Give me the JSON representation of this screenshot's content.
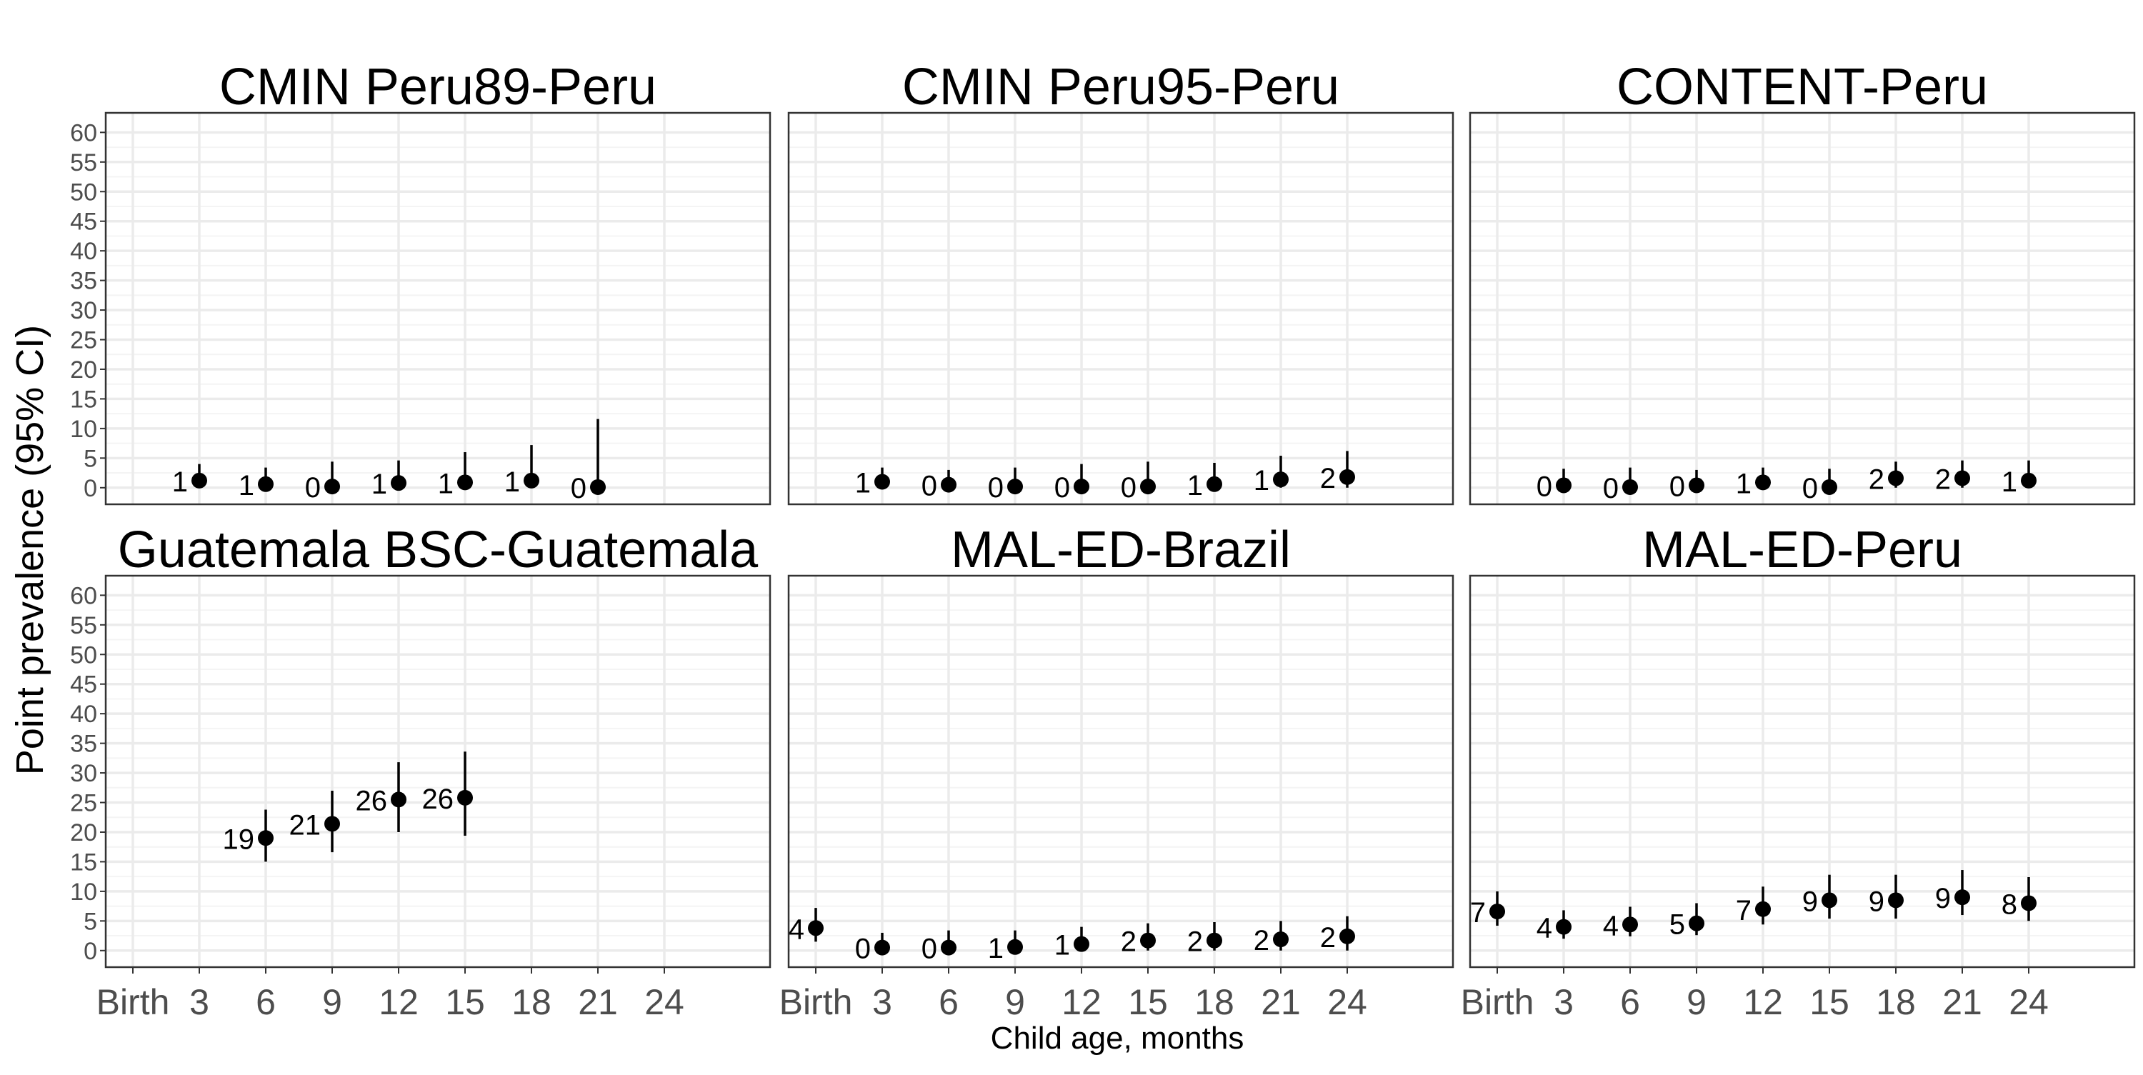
{
  "chart_data": {
    "type": "scatter",
    "xlabel": "Child age, months",
    "ylabel": "Point prevalence (95% CI)",
    "x_categories": [
      "Birth",
      "3",
      "6",
      "9",
      "12",
      "15",
      "18",
      "21",
      "24"
    ],
    "y_ticks": [
      0,
      5,
      10,
      15,
      20,
      25,
      30,
      35,
      40,
      45,
      50,
      55,
      60
    ],
    "ylim": [
      -2.8,
      63.3
    ],
    "grid": true,
    "panels": [
      {
        "title": "CMIN Peru89-Peru",
        "points": [
          {
            "x": "3",
            "y": 1.2,
            "lower": 0,
            "upper": 4.0,
            "label": "1"
          },
          {
            "x": "6",
            "y": 0.6,
            "lower": 0,
            "upper": 3.4,
            "label": "1"
          },
          {
            "x": "9",
            "y": 0.2,
            "lower": 0,
            "upper": 4.4,
            "label": "0"
          },
          {
            "x": "12",
            "y": 0.8,
            "lower": 0,
            "upper": 4.6,
            "label": "1"
          },
          {
            "x": "15",
            "y": 0.9,
            "lower": 0,
            "upper": 6.0,
            "label": "1"
          },
          {
            "x": "18",
            "y": 1.2,
            "lower": 0,
            "upper": 7.2,
            "label": "1"
          },
          {
            "x": "21",
            "y": 0.1,
            "lower": 0,
            "upper": 11.6,
            "label": "0"
          }
        ]
      },
      {
        "title": "CMIN Peru95-Peru",
        "points": [
          {
            "x": "3",
            "y": 1.0,
            "lower": 0,
            "upper": 3.4,
            "label": "1"
          },
          {
            "x": "6",
            "y": 0.5,
            "lower": 0,
            "upper": 3.0,
            "label": "0"
          },
          {
            "x": "9",
            "y": 0.2,
            "lower": 0,
            "upper": 3.4,
            "label": "0"
          },
          {
            "x": "12",
            "y": 0.2,
            "lower": 0,
            "upper": 4.0,
            "label": "0"
          },
          {
            "x": "15",
            "y": 0.2,
            "lower": 0,
            "upper": 4.4,
            "label": "0"
          },
          {
            "x": "18",
            "y": 0.6,
            "lower": 0,
            "upper": 4.2,
            "label": "1"
          },
          {
            "x": "21",
            "y": 1.4,
            "lower": 0,
            "upper": 5.4,
            "label": "1"
          },
          {
            "x": "24",
            "y": 1.8,
            "lower": 0,
            "upper": 6.2,
            "label": "2"
          }
        ]
      },
      {
        "title": "CONTENT-Peru",
        "points": [
          {
            "x": "3",
            "y": 0.4,
            "lower": 0,
            "upper": 3.2,
            "label": "0"
          },
          {
            "x": "6",
            "y": 0.1,
            "lower": 0,
            "upper": 3.4,
            "label": "0"
          },
          {
            "x": "9",
            "y": 0.4,
            "lower": 0,
            "upper": 3.0,
            "label": "0"
          },
          {
            "x": "12",
            "y": 0.9,
            "lower": 0,
            "upper": 3.4,
            "label": "1"
          },
          {
            "x": "15",
            "y": 0.1,
            "lower": 0,
            "upper": 3.2,
            "label": "0"
          },
          {
            "x": "18",
            "y": 1.6,
            "lower": 0,
            "upper": 4.4,
            "label": "2"
          },
          {
            "x": "21",
            "y": 1.6,
            "lower": 0,
            "upper": 4.6,
            "label": "2"
          },
          {
            "x": "24",
            "y": 1.2,
            "lower": 0,
            "upper": 4.6,
            "label": "1"
          }
        ]
      },
      {
        "title": "Guatemala BSC-Guatemala",
        "points": [
          {
            "x": "6",
            "y": 19.0,
            "lower": 15.0,
            "upper": 23.8,
            "label": "19"
          },
          {
            "x": "9",
            "y": 21.4,
            "lower": 16.6,
            "upper": 27.0,
            "label": "21"
          },
          {
            "x": "12",
            "y": 25.5,
            "lower": 20.0,
            "upper": 31.8,
            "label": "26"
          },
          {
            "x": "15",
            "y": 25.8,
            "lower": 19.4,
            "upper": 33.6,
            "label": "26"
          }
        ]
      },
      {
        "title": "MAL-ED-Brazil",
        "points": [
          {
            "x": "Birth",
            "y": 3.8,
            "lower": 1.5,
            "upper": 7.2,
            "label": "4"
          },
          {
            "x": "3",
            "y": 0.5,
            "lower": 0,
            "upper": 3.0,
            "label": "0"
          },
          {
            "x": "6",
            "y": 0.5,
            "lower": 0,
            "upper": 3.4,
            "label": "0"
          },
          {
            "x": "9",
            "y": 0.6,
            "lower": 0,
            "upper": 3.4,
            "label": "1"
          },
          {
            "x": "12",
            "y": 1.1,
            "lower": 0,
            "upper": 4.0,
            "label": "1"
          },
          {
            "x": "15",
            "y": 1.7,
            "lower": 0,
            "upper": 4.6,
            "label": "2"
          },
          {
            "x": "18",
            "y": 1.7,
            "lower": 0,
            "upper": 4.8,
            "label": "2"
          },
          {
            "x": "21",
            "y": 1.9,
            "lower": 0,
            "upper": 5.0,
            "label": "2"
          },
          {
            "x": "24",
            "y": 2.4,
            "lower": 0,
            "upper": 5.8,
            "label": "2"
          }
        ]
      },
      {
        "title": "MAL-ED-Peru",
        "points": [
          {
            "x": "Birth",
            "y": 6.6,
            "lower": 4.2,
            "upper": 10.0,
            "label": "7"
          },
          {
            "x": "3",
            "y": 4.0,
            "lower": 2.0,
            "upper": 6.8,
            "label": "4"
          },
          {
            "x": "6",
            "y": 4.4,
            "lower": 2.4,
            "upper": 7.4,
            "label": "4"
          },
          {
            "x": "9",
            "y": 4.6,
            "lower": 2.6,
            "upper": 8.0,
            "label": "5"
          },
          {
            "x": "12",
            "y": 7.0,
            "lower": 4.4,
            "upper": 10.8,
            "label": "7"
          },
          {
            "x": "15",
            "y": 8.5,
            "lower": 5.4,
            "upper": 12.8,
            "label": "9"
          },
          {
            "x": "18",
            "y": 8.5,
            "lower": 5.4,
            "upper": 12.8,
            "label": "9"
          },
          {
            "x": "21",
            "y": 9.0,
            "lower": 6.0,
            "upper": 13.6,
            "label": "9"
          },
          {
            "x": "24",
            "y": 8.0,
            "lower": 5.0,
            "upper": 12.4,
            "label": "8"
          }
        ]
      }
    ]
  },
  "colors": {
    "point": "#000000",
    "panel_border": "#333333",
    "grid_major": "#ebebeb",
    "grid_minor": "#f4f4f4",
    "tick_text": "#4d4d4d",
    "text": "#000000"
  }
}
